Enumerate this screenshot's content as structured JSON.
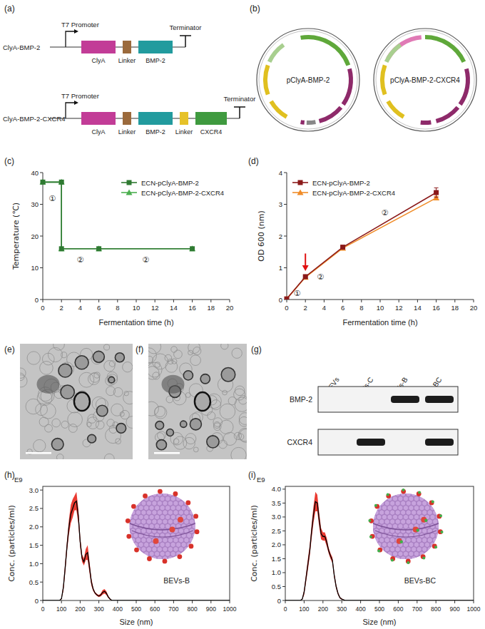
{
  "chart_data": [
    {
      "type": "line",
      "panel": "(c)",
      "xlabel": "Fermentation time (h)",
      "ylabel": "Temperature (℃)",
      "x": [
        0,
        2,
        2,
        6,
        16
      ],
      "series": [
        {
          "name": "ECN-pClyA-BMP-2",
          "color": "#2f7a32",
          "marker": "square",
          "line_style": "solid",
          "values": [
            37,
            37,
            16,
            16,
            16
          ]
        },
        {
          "name": "ECN-pClyA-BMP-2-CXCR4",
          "color": "#4caf50",
          "marker": "triangle",
          "line_style": "solid",
          "values": [
            37,
            37,
            16,
            16,
            16
          ]
        }
      ],
      "xlim": [
        0,
        20
      ],
      "xticks": [
        0,
        2,
        4,
        6,
        8,
        10,
        12,
        14,
        16,
        18,
        20
      ],
      "ylim": [
        0,
        40
      ],
      "yticks": [
        0,
        10,
        20,
        30,
        40
      ],
      "grid": false,
      "legend": "upper right",
      "annotations": [
        {
          "text": "①",
          "x": 1,
          "y": 32
        },
        {
          "text": "②",
          "x": 4,
          "y": 12.5
        },
        {
          "text": "②",
          "x": 11,
          "y": 12.5
        }
      ]
    },
    {
      "type": "line",
      "panel": "(d)",
      "xlabel": "Fermentation time (h)",
      "ylabel": "OD 600 (nm)",
      "x": [
        0,
        2,
        6,
        16
      ],
      "series": [
        {
          "name": "ECN-pClyA-BMP-2",
          "color": "#8b1a1a",
          "marker": "square",
          "line_style": "solid",
          "values": [
            0.02,
            0.72,
            1.65,
            3.37
          ],
          "errors": [
            0,
            0.02,
            0.04,
            0.15
          ]
        },
        {
          "name": "ECN-pClyA-BMP-2-CXCR4",
          "color": "#f08c28",
          "marker": "triangle",
          "line_style": "solid",
          "values": [
            0.02,
            0.7,
            1.62,
            3.2
          ],
          "errors": [
            0,
            0.02,
            0.03,
            0.05
          ]
        }
      ],
      "xlim": [
        0,
        20
      ],
      "xticks": [
        0,
        2,
        4,
        6,
        8,
        10,
        12,
        14,
        16,
        18,
        20
      ],
      "ylim": [
        0,
        4
      ],
      "yticks": [
        0,
        1,
        2,
        3,
        4
      ],
      "grid": false,
      "legend": "upper left",
      "annotations": [
        {
          "text": "①",
          "x": 1.1,
          "y": 0.2
        },
        {
          "text": "②",
          "x": 3.6,
          "y": 0.72
        },
        {
          "text": "②",
          "x": 10.5,
          "y": 2.75
        }
      ],
      "arrows": [
        {
          "x": 2,
          "y": 1.45,
          "y_end": 0.9,
          "color": "#e01010"
        }
      ]
    },
    {
      "type": "line",
      "panel": "(h)",
      "xlabel": "Size (nm)",
      "ylabel": "Conc. (particles/ml)",
      "y_scale_label": "E9",
      "inset_label": "BEVs-B",
      "x": [
        0,
        90,
        100,
        110,
        120,
        130,
        140,
        150,
        160,
        170,
        180,
        190,
        200,
        210,
        220,
        230,
        240,
        250,
        260,
        270,
        280,
        290,
        300,
        310,
        320,
        330,
        340,
        350,
        360,
        370,
        400,
        1000
      ],
      "series": [
        {
          "color": "#000000",
          "line_style": "solid",
          "values": [
            0,
            0,
            0.05,
            0.35,
            0.9,
            1.5,
            2.0,
            2.35,
            2.5,
            2.65,
            2.7,
            2.3,
            1.6,
            1.15,
            1.05,
            1.25,
            1.3,
            0.9,
            0.5,
            0.3,
            0.2,
            0.15,
            0.12,
            0.15,
            0.22,
            0.25,
            0.2,
            0.1,
            0.04,
            0,
            0,
            0
          ],
          "errors": [
            0,
            0,
            0.02,
            0.1,
            0.15,
            0.15,
            0.2,
            0.25,
            0.25,
            0.2,
            0.25,
            0.2,
            0.15,
            0.1,
            0.1,
            0.15,
            0.2,
            0.15,
            0.1,
            0.05,
            0.03,
            0.03,
            0.03,
            0.04,
            0.06,
            0.06,
            0.05,
            0.03,
            0.02,
            0,
            0,
            0
          ]
        }
      ],
      "xlim": [
        0,
        1000
      ],
      "xticks": [
        0,
        100,
        200,
        300,
        400,
        500,
        600,
        700,
        800,
        900,
        1000
      ],
      "ylim": [
        0,
        3.1
      ],
      "yticks": [
        0,
        0.5,
        {
          "value": 1,
          "label": "1.0"
        },
        1.5,
        {
          "value": 2,
          "label": "2.0"
        },
        2.5,
        {
          "value": 3,
          "label": "3.0"
        }
      ],
      "grid": false
    },
    {
      "type": "line",
      "panel": "(i)",
      "xlabel": "Size (nm)",
      "ylabel": "Conc. (particles/ml)",
      "y_scale_label": "E9",
      "inset_label": "BEVs-BC",
      "x": [
        0,
        80,
        90,
        100,
        110,
        120,
        130,
        140,
        150,
        160,
        170,
        180,
        190,
        200,
        210,
        220,
        230,
        240,
        250,
        260,
        270,
        280,
        290,
        300,
        320,
        350,
        1000
      ],
      "series": [
        {
          "color": "#000000",
          "line_style": "solid",
          "values": [
            0,
            0,
            0.05,
            0.3,
            0.8,
            1.3,
            1.8,
            2.5,
            3.1,
            3.55,
            3.5,
            2.9,
            2.4,
            2.3,
            2.3,
            2.1,
            1.8,
            1.6,
            1.45,
            0.9,
            0.5,
            0.25,
            0.1,
            0.05,
            0,
            0,
            0
          ],
          "errors": [
            0,
            0,
            0.02,
            0.1,
            0.15,
            0.2,
            0.2,
            0.25,
            0.3,
            0.35,
            0.3,
            0.25,
            0.2,
            0.15,
            0.15,
            0.15,
            0.1,
            0.1,
            0.1,
            0.1,
            0.08,
            0.05,
            0.03,
            0.02,
            0,
            0,
            0
          ]
        }
      ],
      "xlim": [
        0,
        1000
      ],
      "xticks": [
        0,
        100,
        200,
        300,
        400,
        500,
        600,
        700,
        800,
        900,
        1000
      ],
      "ylim": [
        0,
        4.1
      ],
      "yticks": [
        0,
        0.5,
        {
          "value": 1,
          "label": "1.0"
        },
        1.5,
        {
          "value": 2,
          "label": "2.0"
        },
        2.5,
        {
          "value": 3,
          "label": "3.0"
        },
        3.5,
        {
          "value": 4,
          "label": "4.0"
        }
      ],
      "grid": false
    }
  ],
  "constructs": {
    "panel": "(a)",
    "items": [
      {
        "name": "ClyA-BMP-2",
        "promoter": "T7 Promoter",
        "terminator": "Terminator",
        "parts": [
          "ClyA",
          "Linker",
          "BMP-2"
        ]
      },
      {
        "name": "ClyA-BMP-2-CXCR4",
        "promoter": "T7 Promoter",
        "terminator": "Terminator",
        "parts": [
          "ClyA",
          "Linker",
          "BMP-2",
          "Linker",
          "CXCR4"
        ]
      }
    ]
  },
  "plasmids": {
    "panel": "(b)",
    "items": [
      "pClyA-BMP-2",
      "pClyA-BMP-2-CXCR4"
    ]
  },
  "micrographs": [
    {
      "panel": "(e)"
    },
    {
      "panel": "(f)"
    }
  ],
  "western_blot": {
    "panel": "(g)",
    "lanes": [
      "BEVs",
      "BEVs-C",
      "BEVs-B",
      "BEVs-BC"
    ],
    "rows": [
      {
        "name": "BMP-2",
        "bands": [
          false,
          false,
          true,
          true
        ]
      },
      {
        "name": "CXCR4",
        "bands": [
          false,
          true,
          false,
          true
        ]
      }
    ]
  }
}
